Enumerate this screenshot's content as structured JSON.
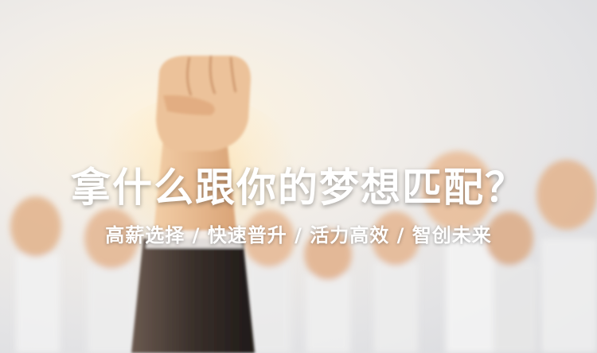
{
  "banner": {
    "headline": "拿什么跟你的梦想匹配？",
    "subline": "高薪选择 / 快速普升 / 活力高效 / 智创未来",
    "image_subject": "raised-fists-photo"
  },
  "colors": {
    "text": "#ffffff",
    "background_light": "#f1ede8",
    "background_gray": "#d7d8dc",
    "skin": "#e8b98e",
    "sleeve_white": "#f2f2f2",
    "suit_dark": "#2a2522"
  }
}
